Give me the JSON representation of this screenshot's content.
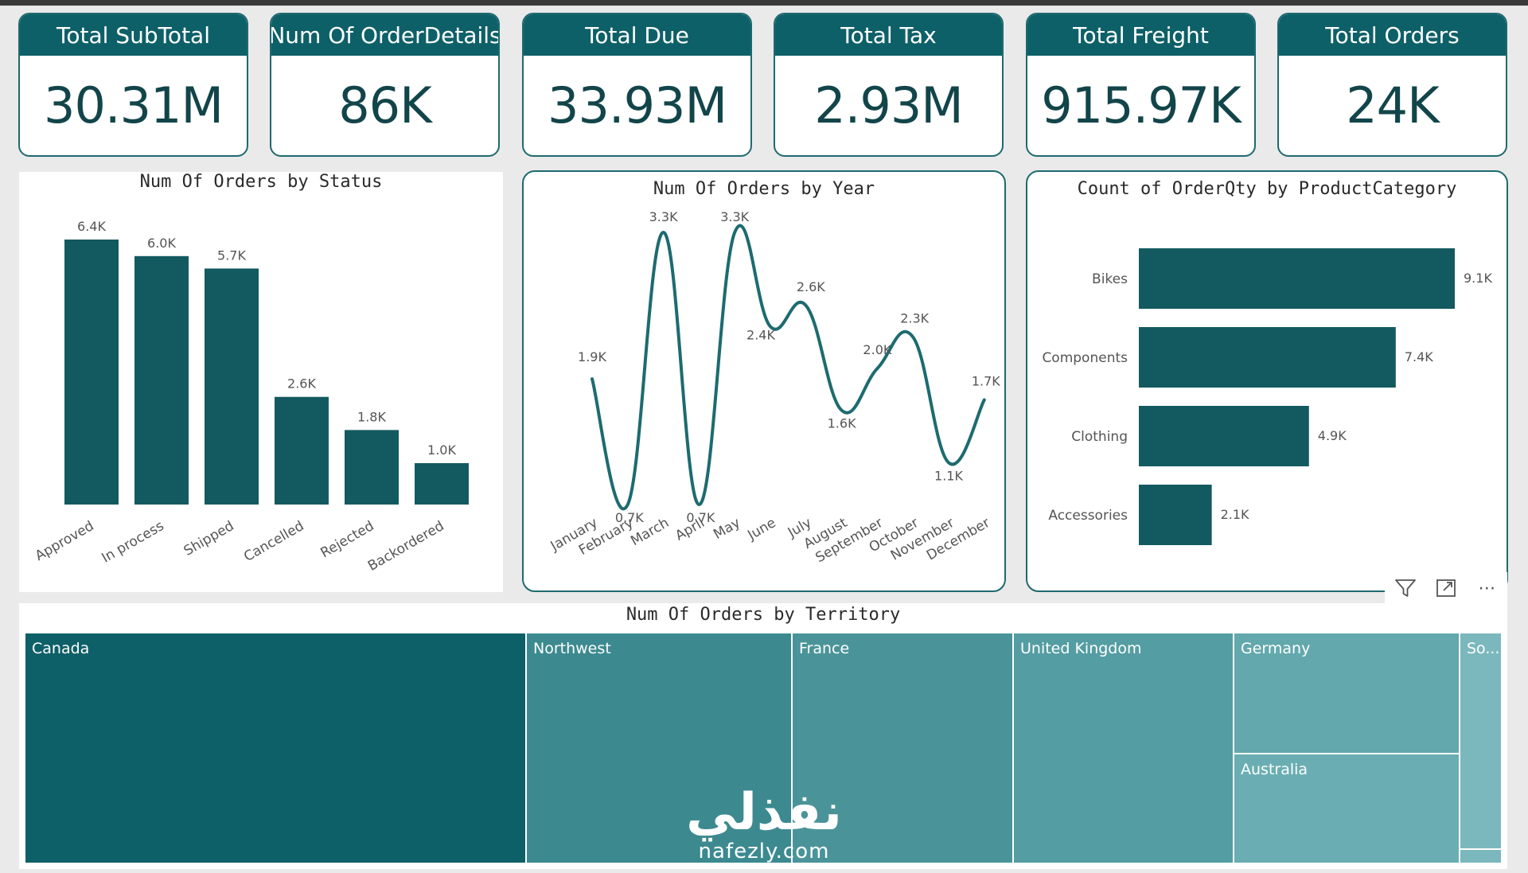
{
  "kpis": [
    {
      "label": "Total SubTotal",
      "value": "30.31M"
    },
    {
      "label": "Num Of OrderDetails",
      "value": "86K"
    },
    {
      "label": "Total Due",
      "value": "33.93M"
    },
    {
      "label": "Total Tax",
      "value": "2.93M"
    },
    {
      "label": "Total Freight",
      "value": "915.97K"
    },
    {
      "label": "Total Orders",
      "value": "24K"
    }
  ],
  "colors": {
    "accent": "#0e6068",
    "bar": "#135a60",
    "line": "#1d6b70",
    "treemap": [
      "#0e6068",
      "#3c8a90",
      "#4a9499",
      "#549da2",
      "#63a8ad",
      "#6aaeb3",
      "#7bb8bd"
    ]
  },
  "visual_header": {
    "icons": [
      "filter-icon",
      "focus-mode-icon",
      "more-options-icon"
    ],
    "more_glyph": "⋯"
  },
  "chart_data": [
    {
      "type": "bar",
      "title": "Num Of Orders by Status",
      "categories": [
        "Approved",
        "In process",
        "Shipped",
        "Cancelled",
        "Rejected",
        "Backordered"
      ],
      "values": [
        6.4,
        6.0,
        5.7,
        2.6,
        1.8,
        1.0
      ],
      "data_labels": [
        "6.4K",
        "6.0K",
        "5.7K",
        "2.6K",
        "1.8K",
        "1.0K"
      ],
      "ylim": [
        0,
        6.6
      ],
      "grid": false
    },
    {
      "type": "line",
      "title": "Num Of Orders by Year",
      "categories": [
        "January",
        "February",
        "March",
        "April",
        "May",
        "June",
        "July",
        "August",
        "September",
        "October",
        "November",
        "December"
      ],
      "values": [
        1.9,
        0.7,
        3.3,
        0.7,
        3.3,
        2.4,
        2.6,
        1.6,
        2.0,
        2.3,
        1.1,
        1.7
      ],
      "data_labels": [
        "1.9K",
        "0.7K",
        "3.3K",
        "0.7K",
        "3.3K",
        "2.4K",
        "2.6K",
        "1.6K",
        "2.0K",
        "2.3K",
        "1.1K",
        "1.7K"
      ],
      "ylim": [
        0.5,
        3.4
      ],
      "grid": false
    },
    {
      "type": "bar",
      "orientation": "horizontal",
      "title": "Count of OrderQty by ProductCategory",
      "categories": [
        "Bikes",
        "Components",
        "Clothing",
        "Accessories"
      ],
      "values": [
        9.1,
        7.4,
        4.9,
        2.1
      ],
      "data_labels": [
        "9.1K",
        "7.4K",
        "4.9K",
        "2.1K"
      ],
      "xlim": [
        0,
        9.1
      ],
      "grid": false
    },
    {
      "type": "treemap",
      "title": "Num Of Orders by Territory",
      "categories": [
        "Canada",
        "Northwest",
        "France",
        "United Kingdom",
        "Germany",
        "Australia",
        "So..."
      ]
    }
  ],
  "watermark": {
    "arabic": "نفذلي",
    "latin": "nafezly.com"
  }
}
